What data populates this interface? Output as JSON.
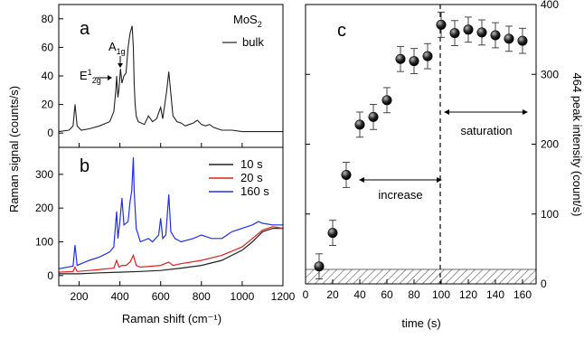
{
  "colors": {
    "black": "#222222",
    "red": "#e02020",
    "blue": "#2230e0",
    "marker": "#1a1a1a",
    "hatch": "#555555"
  },
  "chart_data": [
    {
      "type": "line",
      "panel": "a",
      "xlabel": "Raman shift (cm⁻¹)",
      "ylabel": "Raman signal (counts/s)",
      "xlim": [
        100,
        1200
      ],
      "ylim": [
        -10,
        90
      ],
      "yticks": [
        0,
        20,
        40,
        60,
        80
      ],
      "xtick_labels_shown": false,
      "legend_placement": "top-right",
      "annotations": {
        "material_base": "MoS",
        "material_sub": "2",
        "e_base": "E",
        "e_sup": "1",
        "e_sub": "2g",
        "a_base": "A",
        "a_sub": "1g"
      },
      "series": [
        {
          "name": "bulk",
          "x": [
            100,
            150,
            170,
            180,
            190,
            210,
            250,
            300,
            350,
            370,
            380,
            384,
            390,
            395,
            403,
            410,
            420,
            430,
            440,
            450,
            460,
            466,
            470,
            475,
            480,
            490,
            520,
            540,
            560,
            580,
            600,
            610,
            630,
            640,
            660,
            680,
            700,
            720,
            740,
            760,
            780,
            800,
            820,
            840,
            860,
            880,
            900,
            950,
            1000,
            1050,
            1100,
            1150,
            1200
          ],
          "y": [
            1,
            2,
            5,
            20,
            5,
            2,
            3,
            5,
            8,
            15,
            30,
            40,
            25,
            30,
            45,
            35,
            40,
            42,
            60,
            70,
            75,
            60,
            35,
            20,
            12,
            8,
            6,
            12,
            8,
            10,
            18,
            10,
            30,
            43,
            12,
            8,
            7,
            5,
            6,
            7,
            9,
            6,
            5,
            6,
            4,
            3,
            2,
            2,
            1,
            1,
            1,
            1,
            1
          ]
        }
      ]
    },
    {
      "type": "line",
      "panel": "b",
      "xlabel": "Raman shift (cm⁻¹)",
      "ylabel": "Raman signal (counts/s)",
      "xlim": [
        100,
        1200
      ],
      "ylim": [
        -30,
        380
      ],
      "yticks": [
        0,
        100,
        200,
        300
      ],
      "xticks": [
        200,
        400,
        600,
        800,
        1000,
        1200
      ],
      "legend_placement": "top-right",
      "series": [
        {
          "name": "10 s",
          "x": [
            100,
            200,
            300,
            400,
            500,
            600,
            700,
            800,
            900,
            1000,
            1050,
            1100,
            1150,
            1200
          ],
          "y": [
            5,
            5,
            8,
            10,
            12,
            15,
            22,
            30,
            45,
            75,
            100,
            130,
            140,
            140
          ]
        },
        {
          "name": "20 s",
          "x": [
            100,
            170,
            180,
            190,
            250,
            300,
            370,
            384,
            395,
            410,
            430,
            450,
            466,
            480,
            500,
            600,
            640,
            660,
            700,
            800,
            900,
            1000,
            1050,
            1100,
            1150,
            1200
          ],
          "y": [
            10,
            12,
            25,
            12,
            15,
            18,
            22,
            45,
            25,
            30,
            30,
            40,
            60,
            30,
            25,
            30,
            40,
            30,
            35,
            45,
            60,
            85,
            110,
            135,
            145,
            140
          ]
        },
        {
          "name": "160 s",
          "x": [
            100,
            170,
            180,
            190,
            250,
            300,
            350,
            370,
            384,
            390,
            400,
            410,
            420,
            440,
            450,
            458,
            466,
            470,
            480,
            500,
            540,
            560,
            590,
            600,
            610,
            625,
            640,
            650,
            670,
            700,
            760,
            800,
            850,
            900,
            950,
            1000,
            1050,
            1080,
            1100,
            1150,
            1200
          ],
          "y": [
            20,
            28,
            90,
            30,
            45,
            55,
            70,
            85,
            190,
            110,
            160,
            230,
            150,
            160,
            220,
            250,
            350,
            250,
            140,
            100,
            110,
            100,
            120,
            170,
            110,
            120,
            240,
            130,
            110,
            100,
            110,
            120,
            110,
            110,
            130,
            140,
            150,
            160,
            155,
            150,
            150
          ]
        }
      ]
    },
    {
      "type": "scatter",
      "panel": "c",
      "xlabel": "time (s)",
      "ylabel": "464 peak intensity (count/s)",
      "xlim": [
        0,
        170
      ],
      "ylim": [
        0,
        400
      ],
      "xticks": [
        0,
        20,
        40,
        60,
        80,
        100,
        120,
        140,
        160
      ],
      "yticks": [
        0,
        100,
        200,
        300,
        400
      ],
      "vline_x": 100,
      "hatched_band": [
        0,
        20
      ],
      "annotations": {
        "increase": "increase",
        "saturation": "saturation"
      },
      "series": [
        {
          "name": "464 peak",
          "x": [
            10,
            20,
            30,
            40,
            50,
            60,
            70,
            80,
            90,
            100,
            110,
            120,
            130,
            140,
            150,
            160
          ],
          "y": [
            25,
            73,
            156,
            228,
            239,
            263,
            322,
            319,
            326,
            371,
            359,
            364,
            360,
            356,
            351,
            348
          ],
          "err": [
            18,
            18,
            18,
            18,
            18,
            18,
            18,
            18,
            18,
            18,
            18,
            18,
            18,
            18,
            18,
            18
          ]
        }
      ]
    }
  ]
}
